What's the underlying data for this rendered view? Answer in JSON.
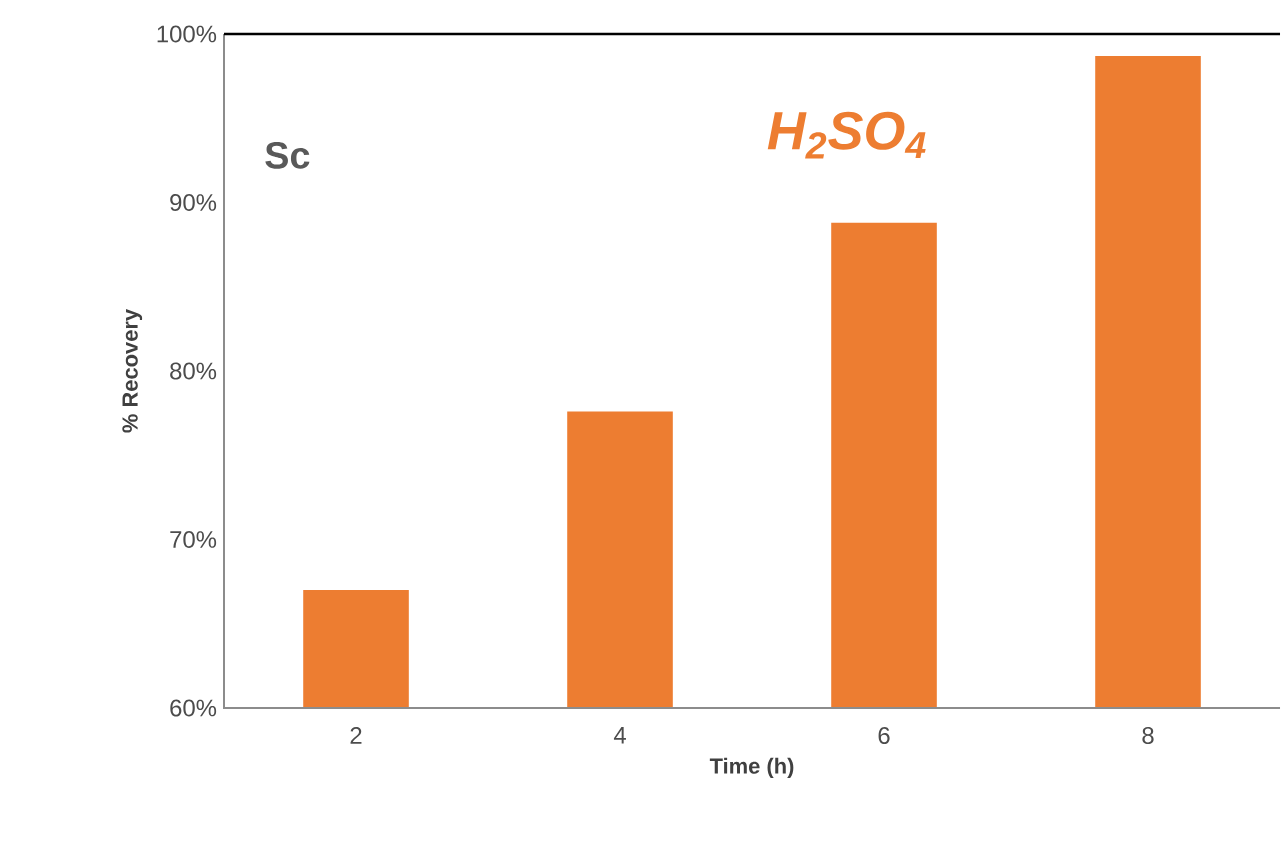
{
  "chart_data": {
    "type": "bar",
    "categories": [
      "2",
      "4",
      "6",
      "8"
    ],
    "values": [
      67.0,
      77.6,
      88.8,
      98.7
    ],
    "color": "#ed7d31",
    "xlabel": "Time (h)",
    "ylabel": "% Recovery",
    "ylim": [
      60,
      100
    ],
    "yticks": [
      {
        "value": 60,
        "label": "60%"
      },
      {
        "value": 70,
        "label": "70%"
      },
      {
        "value": 80,
        "label": "80%"
      },
      {
        "value": 90,
        "label": "90%"
      },
      {
        "value": 100,
        "label": "100%"
      }
    ],
    "annotations": [
      "Sc",
      "H$_{2}$SO$_{4}$"
    ],
    "grid": false
  }
}
